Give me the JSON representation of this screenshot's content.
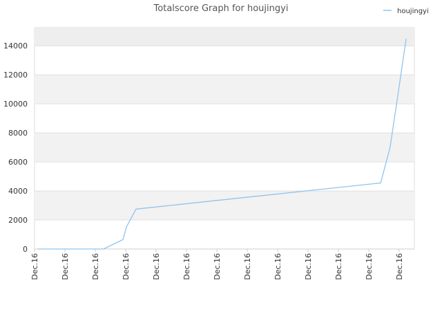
{
  "chart_data": {
    "type": "line",
    "title": "Totalscore Graph for houjingyi",
    "x": [
      0.11,
      2.27,
      2.91,
      3.02,
      3.34,
      11.39,
      11.7,
      11.95,
      12.23
    ],
    "series": [
      {
        "name": "houjingyi",
        "color": "#90c4ee",
        "values": [
          0,
          0,
          650,
          1500,
          2750,
          4550,
          7000,
          10500,
          14500
        ]
      }
    ],
    "xlim": [
      0,
      12.5
    ],
    "xticks": [
      {
        "value": 0,
        "label": "Dec.16"
      },
      {
        "value": 1,
        "label": "Dec.16"
      },
      {
        "value": 2,
        "label": "Dec.16"
      },
      {
        "value": 3,
        "label": "Dec.16"
      },
      {
        "value": 4,
        "label": "Dec.16"
      },
      {
        "value": 5,
        "label": "Dec.16"
      },
      {
        "value": 6,
        "label": "Dec.16"
      },
      {
        "value": 7,
        "label": "Dec.16"
      },
      {
        "value": 8,
        "label": "Dec.16"
      },
      {
        "value": 9,
        "label": "Dec.16"
      },
      {
        "value": 10,
        "label": "Dec.16"
      },
      {
        "value": 11,
        "label": "Dec.16"
      },
      {
        "value": 12,
        "label": "Dec.16"
      }
    ],
    "ylim": [
      0,
      15250
    ],
    "yticks": [
      0,
      2000,
      4000,
      6000,
      8000,
      10000,
      12000,
      14000
    ],
    "grid": true,
    "legend": "top-right"
  }
}
